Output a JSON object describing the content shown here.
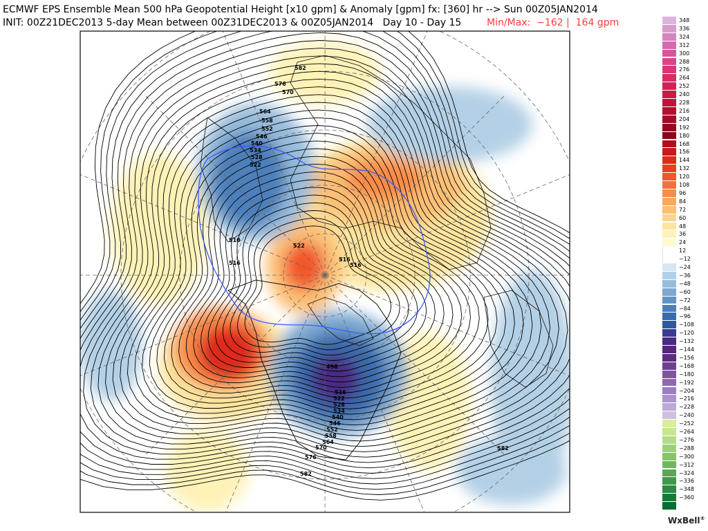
{
  "header": {
    "line1": "ECMWF EPS Ensemble Mean 500 hPa Geopotential Height [x10 gpm] & Anomaly [gpm] fx: [360] hr --> Sun 00Z05JAN2014",
    "line2": "INIT: 00Z21DEC2013 5-day Mean between 00Z31DEC2013 & 00Z05JAN2014   Day 10 - Day 15",
    "minmax": "Min/Max:  −162 |  164 gpm"
  },
  "scale": {
    "labels": [
      "348",
      "336",
      "324",
      "312",
      "300",
      "288",
      "276",
      "264",
      "252",
      "240",
      "228",
      "216",
      "204",
      "192",
      "180",
      "168",
      "156",
      "144",
      "132",
      "120",
      "108",
      "96",
      "84",
      "72",
      "60",
      "48",
      "36",
      "24",
      "12",
      "−12",
      "−24",
      "−36",
      "−48",
      "−60",
      "−72",
      "−84",
      "−96",
      "−108",
      "−120",
      "−132",
      "−144",
      "−156",
      "−168",
      "−180",
      "−192",
      "−204",
      "−216",
      "−228",
      "−240",
      "−252",
      "−264",
      "−276",
      "−288",
      "−300",
      "−312",
      "−324",
      "−336",
      "−348",
      "−360"
    ],
    "colors": [
      "#dcb4e0",
      "#d79ccd",
      "#d683c0",
      "#d66aae",
      "#d8559d",
      "#dc4489",
      "#dd3477",
      "#dc2a67",
      "#d52055",
      "#cc1a47",
      "#c0143b",
      "#b30f30",
      "#a50b27",
      "#970720",
      "#8c061b",
      "#b20f1a",
      "#c81a1a",
      "#dd2b1c",
      "#ea3e21",
      "#f2562a",
      "#f6703a",
      "#f88c4a",
      "#fba75e",
      "#fcbf74",
      "#fdd489",
      "#fde59f",
      "#fef2b7",
      "#fefad0",
      "#ffffff",
      "#ffffff",
      "#d6e6f2",
      "#b4d0e6",
      "#97bcdb",
      "#7da8d1",
      "#6393c5",
      "#4d7fba",
      "#3a6bac",
      "#2c589d",
      "#3a3b8f",
      "#482b84",
      "#55247d",
      "#5f2a82",
      "#6e3e92",
      "#7e53a2",
      "#8e69b0",
      "#9c7ebe",
      "#ab94cb",
      "#bbaad7",
      "#ccc0e2",
      "#d8ee9a",
      "#c6e78d",
      "#b2dd82",
      "#9dd176",
      "#86c46b",
      "#6fb660",
      "#58a755",
      "#41984a",
      "#2c8a41",
      "#177b37",
      "#086d2e"
    ]
  },
  "map_labels": {
    "contours": [
      "582",
      "576",
      "570",
      "564",
      "558",
      "552",
      "546",
      "540",
      "534",
      "528",
      "522",
      "510",
      "516",
      "522",
      "516",
      "516",
      "498",
      "516",
      "522",
      "528",
      "534",
      "540",
      "546",
      "552",
      "558",
      "564",
      "570",
      "576",
      "582",
      "582"
    ]
  },
  "logo": {
    "text": "WxBell",
    "mark": "®"
  }
}
